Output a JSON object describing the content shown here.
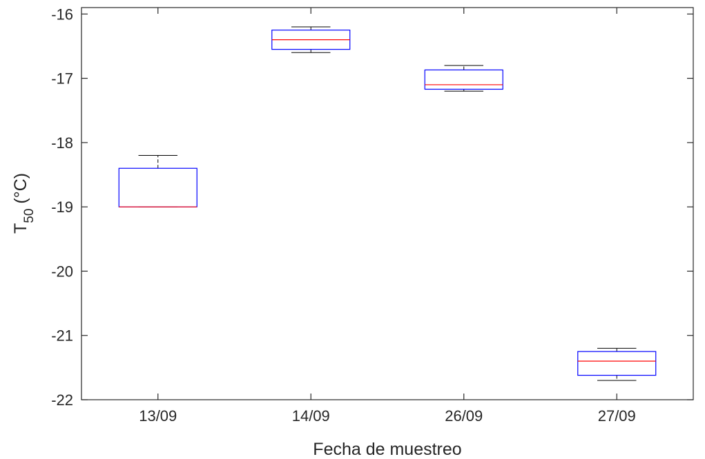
{
  "chart_data": {
    "type": "box",
    "title": "",
    "xlabel": "Fecha de muestreo",
    "ylabel": {
      "main": "T",
      "subscript": "50",
      "unit": " (°C)"
    },
    "ylim": [
      -22,
      -15.9
    ],
    "yticks": [
      -22,
      -21,
      -20,
      -19,
      -18,
      -17,
      -16
    ],
    "categories": [
      "13/09",
      "14/09",
      "26/09",
      "27/09"
    ],
    "boxes": [
      {
        "category": "13/09",
        "whisker_low": -19.0,
        "q1": -19.0,
        "median": -19.0,
        "q3": -18.4,
        "whisker_high": -18.2
      },
      {
        "category": "14/09",
        "whisker_low": -16.6,
        "q1": -16.55,
        "median": -16.4,
        "q3": -16.25,
        "whisker_high": -16.2
      },
      {
        "category": "26/09",
        "whisker_low": -17.2,
        "q1": -17.17,
        "median": -17.1,
        "q3": -16.87,
        "whisker_high": -16.8
      },
      {
        "category": "27/09",
        "whisker_low": -21.7,
        "q1": -21.62,
        "median": -21.4,
        "q3": -21.25,
        "whisker_high": -21.2
      }
    ],
    "grid": false,
    "box_color": "#0000ff",
    "median_color": "#ff0000",
    "whisker_color": "#000000",
    "axis_color": "#262626"
  }
}
